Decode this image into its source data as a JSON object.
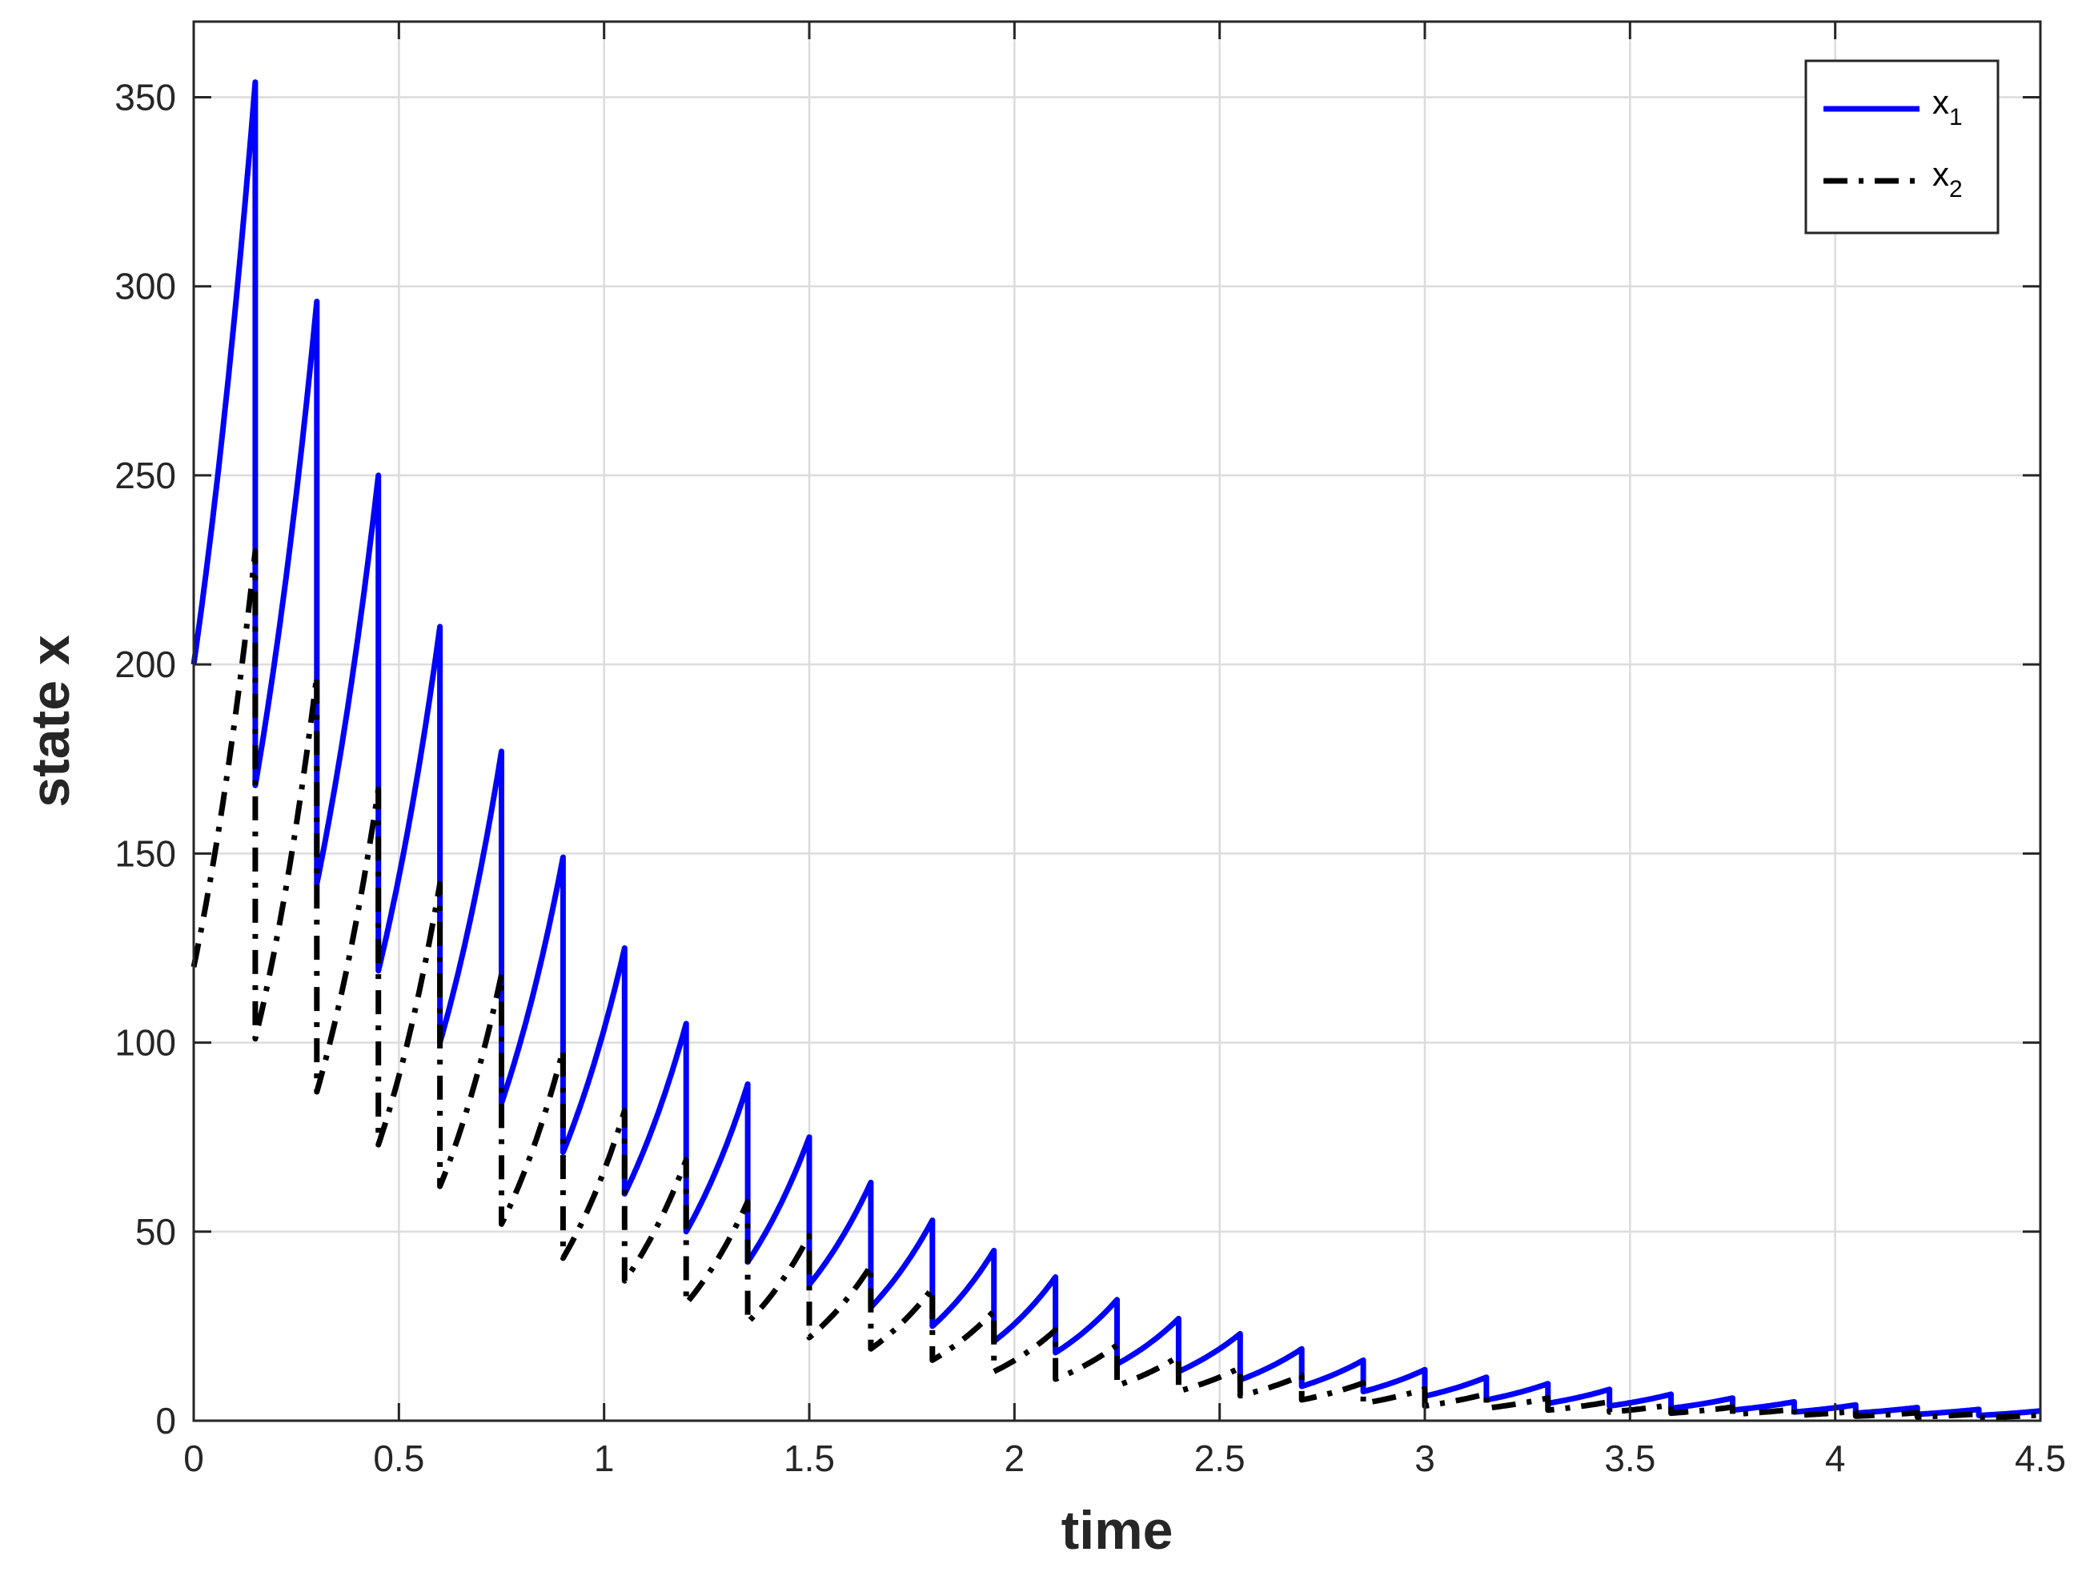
{
  "chart_data": {
    "type": "line",
    "title": "",
    "xlabel": "time",
    "ylabel": "state x",
    "xlim": [
      0,
      4.5
    ],
    "ylim": [
      0,
      370
    ],
    "xticks": [
      0,
      0.5,
      1,
      1.5,
      2,
      2.5,
      3,
      3.5,
      4,
      4.5
    ],
    "xtick_labels": [
      "0",
      "0.5",
      "1",
      "1.5",
      "2",
      "2.5",
      "3",
      "3.5",
      "4",
      "4.5"
    ],
    "yticks": [
      0,
      50,
      100,
      150,
      200,
      250,
      300,
      350
    ],
    "ytick_labels": [
      "0",
      "50",
      "100",
      "150",
      "200",
      "250",
      "300",
      "350"
    ],
    "grid": true,
    "legend_position": "top-right",
    "impulse_period": 0.15,
    "series": [
      {
        "name": "x",
        "name_subscript": "1",
        "color": "#0000ff",
        "style": "solid",
        "start": 200,
        "peaks": [
          354,
          296,
          250,
          210,
          177,
          149,
          125,
          105,
          89,
          75,
          63,
          53,
          45,
          38,
          32,
          27,
          23,
          19,
          16,
          13.5,
          11.5,
          9.8,
          8.3,
          7.0,
          6.0,
          5.0,
          4.2,
          3.5,
          3.0,
          2.6
        ],
        "troughs": [
          168,
          142,
          119,
          100,
          84,
          71,
          60,
          50,
          42,
          36,
          30,
          25,
          21,
          18,
          15,
          13,
          10.8,
          9.1,
          7.7,
          6.5,
          5.5,
          4.6,
          3.9,
          3.3,
          2.8,
          2.3,
          2.0,
          1.7,
          1.4
        ]
      },
      {
        "name": "x",
        "name_subscript": "2",
        "color": "#000000",
        "style": "dashdot",
        "start": 120,
        "peaks": [
          230,
          197,
          167,
          142,
          118,
          98,
          82,
          69,
          58,
          49,
          41,
          35,
          29,
          24,
          20,
          17,
          14,
          12,
          10,
          8.4,
          7.1,
          6.0,
          5.0,
          4.2,
          3.6,
          3.0,
          2.5,
          2.1,
          1.8,
          1.5
        ],
        "troughs": [
          101,
          87,
          73,
          62,
          52,
          43,
          37,
          31,
          26,
          22,
          19,
          16,
          13,
          11,
          9.3,
          7.8,
          6.6,
          5.5,
          4.6,
          3.9,
          3.3,
          2.8,
          2.3,
          2.0,
          1.7,
          1.4,
          1.2,
          1.0,
          0.8
        ]
      }
    ]
  }
}
